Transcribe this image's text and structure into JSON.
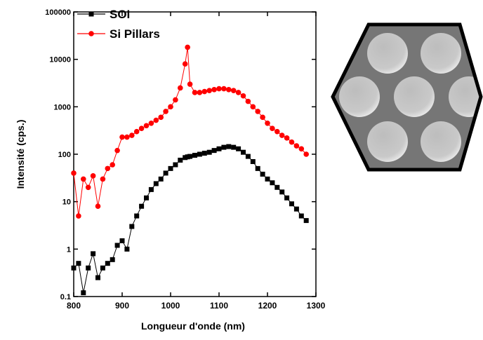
{
  "chart_data": {
    "type": "line",
    "x_label": "Longueur d'onde (nm)",
    "y_label": "Intensité (cps.)",
    "log_y": true,
    "legend": "upper left",
    "x": [
      800,
      810,
      820,
      830,
      840,
      850,
      860,
      870,
      880,
      890,
      900,
      910,
      920,
      930,
      940,
      950,
      960,
      970,
      980,
      990,
      1000,
      1010,
      1020,
      1030,
      1035,
      1040,
      1050,
      1060,
      1070,
      1080,
      1090,
      1100,
      1110,
      1120,
      1130,
      1140,
      1150,
      1160,
      1170,
      1180,
      1190,
      1200,
      1210,
      1220,
      1230,
      1240,
      1250,
      1260,
      1270,
      1280
    ],
    "series": [
      {
        "name": "SOI",
        "color": "#000000",
        "marker": "square",
        "values": [
          0.4,
          0.5,
          0.12,
          0.4,
          0.8,
          0.25,
          0.4,
          0.5,
          0.6,
          1.2,
          1.5,
          1.0,
          3,
          5,
          8,
          12,
          18,
          24,
          30,
          40,
          50,
          60,
          75,
          85,
          88,
          90,
          95,
          100,
          105,
          110,
          120,
          130,
          140,
          145,
          140,
          130,
          110,
          90,
          70,
          50,
          38,
          30,
          25,
          20,
          16,
          12,
          9,
          7,
          5,
          4
        ]
      },
      {
        "name": "Si Pillars",
        "color": "#ff0000",
        "marker": "circle",
        "values": [
          40,
          5,
          30,
          20,
          35,
          8,
          30,
          50,
          60,
          120,
          230,
          230,
          250,
          300,
          350,
          400,
          450,
          520,
          600,
          800,
          1000,
          1400,
          2500,
          8000,
          18000,
          3000,
          2000,
          2000,
          2100,
          2200,
          2300,
          2400,
          2400,
          2300,
          2200,
          2000,
          1700,
          1300,
          1000,
          800,
          600,
          450,
          350,
          300,
          250,
          220,
          180,
          150,
          130,
          100
        ]
      }
    ],
    "xlim": [
      800,
      1300
    ],
    "xticks": [
      800,
      900,
      1000,
      1100,
      1200,
      1300
    ],
    "ylim": [
      0.1,
      100000
    ],
    "yticks": [
      0.1,
      1,
      10,
      100,
      1000,
      10000,
      100000
    ]
  }
}
